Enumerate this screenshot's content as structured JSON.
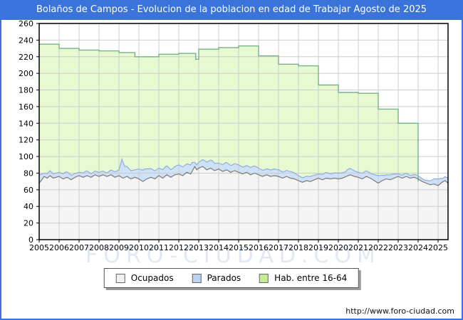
{
  "window": {
    "title": "Bolaños de Campos - Evolucion de la poblacion en edad de Trabajar Agosto de 2025",
    "accent_color": "#3a73d9"
  },
  "watermark": "FORO-CIUDAD.COM",
  "footer": {
    "url": "http://www.foro-ciudad.com"
  },
  "chart_data": {
    "type": "area",
    "title": "Bolaños de Campos - Evolucion de la poblacion en edad de Trabajar Agosto de 2025",
    "xlabel": "",
    "ylabel": "",
    "xlim": [
      2005,
      2025.5
    ],
    "ylim": [
      0,
      260
    ],
    "grid": true,
    "x_tick_labels": [
      "2005",
      "2006",
      "2007",
      "2008",
      "2009",
      "2010",
      "2011",
      "2012",
      "2013",
      "2014",
      "2015",
      "2016",
      "2017",
      "2018",
      "2019",
      "2020",
      "2021",
      "2022",
      "2023",
      "2024",
      "2025"
    ],
    "y_ticks": [
      0,
      20,
      40,
      60,
      80,
      100,
      120,
      140,
      160,
      180,
      200,
      220,
      240,
      260
    ],
    "colors": {
      "grid": "#cccccc",
      "axis": "#000000",
      "tick_text": "#000000"
    },
    "legend": {
      "position": "bottom",
      "items": [
        {
          "label": "Ocupados",
          "swatch": "#f0f0f0"
        },
        {
          "label": "Parados",
          "swatch": "#b9d3f0"
        },
        {
          "label": "Hab. entre 16-64",
          "swatch": "#c6ec96"
        }
      ]
    },
    "series": [
      {
        "name": "Hab. entre 16-64",
        "kind": "step-area",
        "fill": "#e7f9d0",
        "stroke": "#76b189",
        "note": "annual padron values, series ends at start of 2024 dropping to ~70",
        "points": [
          [
            2005,
            235
          ],
          [
            2006,
            230
          ],
          [
            2007,
            228
          ],
          [
            2008,
            227
          ],
          [
            2009,
            225
          ],
          [
            2009.8,
            220
          ],
          [
            2010,
            220
          ],
          [
            2011,
            223
          ],
          [
            2012,
            224
          ],
          [
            2012.85,
            217
          ],
          [
            2013,
            229
          ],
          [
            2014,
            231
          ],
          [
            2015,
            233
          ],
          [
            2016,
            221
          ],
          [
            2017,
            211
          ],
          [
            2018,
            209
          ],
          [
            2019,
            186
          ],
          [
            2020,
            177
          ],
          [
            2021,
            176
          ],
          [
            2022,
            157
          ],
          [
            2023,
            140
          ],
          [
            2024,
            140
          ]
        ],
        "end_drop_to": 70
      },
      {
        "name": "Ocupados",
        "kind": "area",
        "fill": "#f4f4f4",
        "stroke": "#7a7a7a",
        "points": [
          [
            2005.0,
            68
          ],
          [
            2005.1,
            71
          ],
          [
            2005.25,
            76
          ],
          [
            2005.4,
            74
          ],
          [
            2005.55,
            77
          ],
          [
            2005.7,
            74
          ],
          [
            2005.85,
            75
          ],
          [
            2006.0,
            76
          ],
          [
            2006.2,
            73
          ],
          [
            2006.4,
            75
          ],
          [
            2006.6,
            72
          ],
          [
            2006.8,
            75
          ],
          [
            2007.0,
            77
          ],
          [
            2007.2,
            75
          ],
          [
            2007.4,
            77
          ],
          [
            2007.6,
            75
          ],
          [
            2007.8,
            78
          ],
          [
            2008.0,
            76
          ],
          [
            2008.2,
            78
          ],
          [
            2008.4,
            76
          ],
          [
            2008.6,
            78
          ],
          [
            2008.8,
            75
          ],
          [
            2009.0,
            77
          ],
          [
            2009.2,
            74
          ],
          [
            2009.4,
            76
          ],
          [
            2009.6,
            73
          ],
          [
            2009.8,
            75
          ],
          [
            2010.0,
            73
          ],
          [
            2010.2,
            70
          ],
          [
            2010.4,
            73
          ],
          [
            2010.6,
            75
          ],
          [
            2010.8,
            73
          ],
          [
            2011.0,
            77
          ],
          [
            2011.2,
            74
          ],
          [
            2011.4,
            78
          ],
          [
            2011.6,
            75
          ],
          [
            2011.8,
            78
          ],
          [
            2012.0,
            79
          ],
          [
            2012.2,
            77
          ],
          [
            2012.4,
            81
          ],
          [
            2012.6,
            79
          ],
          [
            2012.8,
            88
          ],
          [
            2012.9,
            84
          ],
          [
            2013.0,
            86
          ],
          [
            2013.2,
            88
          ],
          [
            2013.4,
            84
          ],
          [
            2013.6,
            86
          ],
          [
            2013.8,
            83
          ],
          [
            2014.0,
            85
          ],
          [
            2014.2,
            82
          ],
          [
            2014.4,
            84
          ],
          [
            2014.6,
            81
          ],
          [
            2014.8,
            83
          ],
          [
            2015.0,
            81
          ],
          [
            2015.2,
            79
          ],
          [
            2015.4,
            81
          ],
          [
            2015.6,
            78
          ],
          [
            2015.8,
            80
          ],
          [
            2016.0,
            78
          ],
          [
            2016.2,
            76
          ],
          [
            2016.4,
            78
          ],
          [
            2016.6,
            76
          ],
          [
            2016.8,
            77
          ],
          [
            2017.0,
            76
          ],
          [
            2017.2,
            74
          ],
          [
            2017.4,
            76
          ],
          [
            2017.6,
            74
          ],
          [
            2017.8,
            73
          ],
          [
            2018.0,
            71
          ],
          [
            2018.2,
            69
          ],
          [
            2018.4,
            71
          ],
          [
            2018.6,
            70
          ],
          [
            2018.8,
            72
          ],
          [
            2019.0,
            74
          ],
          [
            2019.2,
            72
          ],
          [
            2019.4,
            74
          ],
          [
            2019.6,
            73
          ],
          [
            2019.8,
            74
          ],
          [
            2020.0,
            73
          ],
          [
            2020.2,
            74
          ],
          [
            2020.4,
            76
          ],
          [
            2020.6,
            78
          ],
          [
            2020.8,
            76
          ],
          [
            2021.0,
            75
          ],
          [
            2021.2,
            73
          ],
          [
            2021.4,
            76
          ],
          [
            2021.6,
            74
          ],
          [
            2021.8,
            71
          ],
          [
            2022.0,
            68
          ],
          [
            2022.2,
            71
          ],
          [
            2022.4,
            73
          ],
          [
            2022.6,
            72
          ],
          [
            2022.8,
            74
          ],
          [
            2023.0,
            76
          ],
          [
            2023.2,
            74
          ],
          [
            2023.4,
            76
          ],
          [
            2023.6,
            74
          ],
          [
            2023.8,
            75
          ],
          [
            2024.0,
            73
          ],
          [
            2024.2,
            70
          ],
          [
            2024.4,
            68
          ],
          [
            2024.6,
            66
          ],
          [
            2024.8,
            67
          ],
          [
            2025.0,
            65
          ],
          [
            2025.2,
            69
          ],
          [
            2025.35,
            71
          ],
          [
            2025.5,
            68
          ]
        ]
      },
      {
        "name": "Parados",
        "kind": "stacked-band-on-Ocupados",
        "fill": "#cfe1f6",
        "stroke": "#8fafdd",
        "points": [
          [
            2005.0,
            10
          ],
          [
            2005.25,
            4
          ],
          [
            2005.5,
            6
          ],
          [
            2005.75,
            5
          ],
          [
            2006.0,
            5
          ],
          [
            2006.33,
            7
          ],
          [
            2006.66,
            5
          ],
          [
            2007.0,
            4
          ],
          [
            2007.33,
            6
          ],
          [
            2007.66,
            4
          ],
          [
            2008.0,
            5
          ],
          [
            2008.33,
            4
          ],
          [
            2008.66,
            6
          ],
          [
            2009.0,
            7
          ],
          [
            2009.15,
            22
          ],
          [
            2009.3,
            13
          ],
          [
            2009.6,
            10
          ],
          [
            2009.8,
            9
          ],
          [
            2010.0,
            12
          ],
          [
            2010.25,
            14
          ],
          [
            2010.5,
            11
          ],
          [
            2010.75,
            10
          ],
          [
            2011.0,
            9
          ],
          [
            2011.33,
            11
          ],
          [
            2011.66,
            9
          ],
          [
            2012.0,
            11
          ],
          [
            2012.33,
            10
          ],
          [
            2012.66,
            11
          ],
          [
            2012.8,
            5
          ],
          [
            2013.0,
            7
          ],
          [
            2013.33,
            9
          ],
          [
            2013.66,
            10
          ],
          [
            2014.0,
            7
          ],
          [
            2014.33,
            9
          ],
          [
            2014.66,
            8
          ],
          [
            2015.0,
            9
          ],
          [
            2015.33,
            8
          ],
          [
            2015.66,
            9
          ],
          [
            2016.0,
            8
          ],
          [
            2016.33,
            7
          ],
          [
            2016.66,
            8
          ],
          [
            2017.0,
            8
          ],
          [
            2017.33,
            7
          ],
          [
            2017.66,
            8
          ],
          [
            2018.0,
            6
          ],
          [
            2018.33,
            5
          ],
          [
            2018.66,
            6
          ],
          [
            2019.0,
            5
          ],
          [
            2019.33,
            7
          ],
          [
            2019.66,
            6
          ],
          [
            2020.0,
            7
          ],
          [
            2020.33,
            6
          ],
          [
            2020.5,
            8
          ],
          [
            2020.75,
            7
          ],
          [
            2021.0,
            6
          ],
          [
            2021.33,
            7
          ],
          [
            2021.66,
            6
          ],
          [
            2022.0,
            9
          ],
          [
            2022.33,
            5
          ],
          [
            2022.66,
            6
          ],
          [
            2023.0,
            3
          ],
          [
            2023.33,
            4
          ],
          [
            2023.66,
            3
          ],
          [
            2024.0,
            4
          ],
          [
            2024.33,
            3
          ],
          [
            2024.66,
            5
          ],
          [
            2025.0,
            8
          ],
          [
            2025.25,
            4
          ],
          [
            2025.5,
            6
          ]
        ]
      }
    ]
  }
}
